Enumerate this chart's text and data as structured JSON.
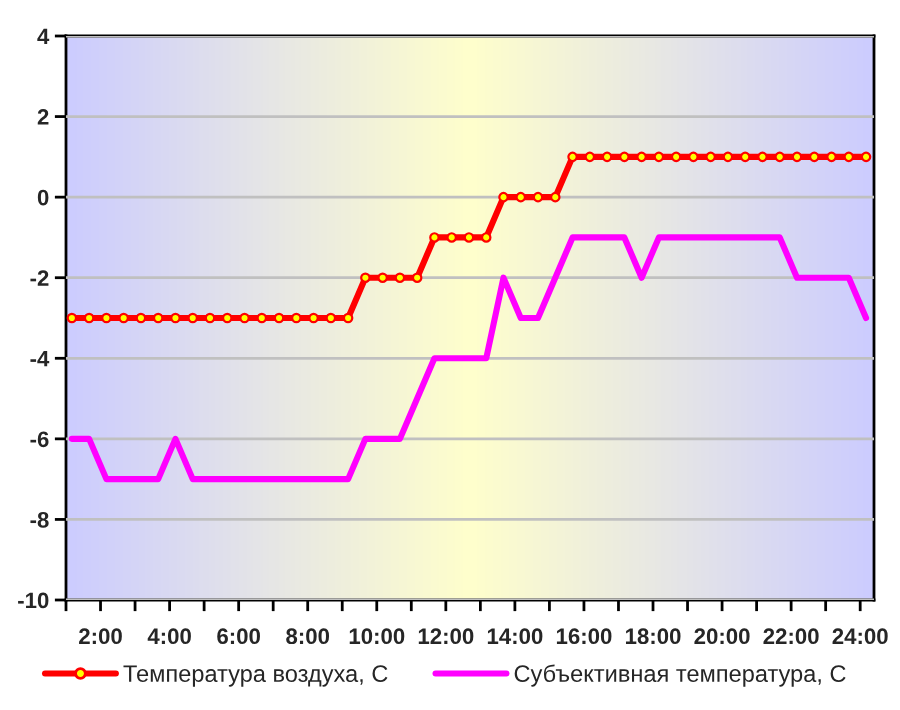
{
  "chart_data": {
    "type": "line",
    "x": [
      1.17,
      1.67,
      2.17,
      2.67,
      3.17,
      3.67,
      4.17,
      4.67,
      5.17,
      5.67,
      6.17,
      6.67,
      7.17,
      7.67,
      8.17,
      8.67,
      9.17,
      9.67,
      10.17,
      10.67,
      11.17,
      11.67,
      12.17,
      12.67,
      13.17,
      13.67,
      14.17,
      14.67,
      15.17,
      15.67,
      16.17,
      16.67,
      17.17,
      17.67,
      18.17,
      18.67,
      19.17,
      19.67,
      20.17,
      20.67,
      21.17,
      21.67,
      22.17,
      22.67,
      23.17,
      23.67,
      24.17
    ],
    "series": [
      {
        "name": "Температура воздуха, С",
        "color": "#ff0000",
        "marker": "circle",
        "values": [
          -3,
          -3,
          -3,
          -3,
          -3,
          -3,
          -3,
          -3,
          -3,
          -3,
          -3,
          -3,
          -3,
          -3,
          -3,
          -3,
          -3,
          -2,
          -2,
          -2,
          -2,
          -1,
          -1,
          -1,
          -1,
          0,
          0,
          0,
          0,
          1,
          1,
          1,
          1,
          1,
          1,
          1,
          1,
          1,
          1,
          1,
          1,
          1,
          1,
          1,
          1,
          1,
          1
        ]
      },
      {
        "name": "Субъективная температура, С",
        "color": "#ff00ff",
        "marker": "none",
        "values": [
          -6,
          -6,
          -7,
          -7,
          -7,
          -7,
          -6,
          -7,
          -7,
          -7,
          -7,
          -7,
          -7,
          -7,
          -7,
          -7,
          -7,
          -6,
          -6,
          -6,
          -5,
          -4,
          -4,
          -4,
          -4,
          -2,
          -3,
          -3,
          -2,
          -1,
          -1,
          -1,
          -1,
          -2,
          -1,
          -1,
          -1,
          -1,
          -1,
          -1,
          -1,
          -1,
          -2,
          -2,
          -2,
          -2,
          -3
        ]
      }
    ],
    "xlim": [
      1,
      24.4
    ],
    "xticks": [
      {
        "value": 1,
        "label": null
      },
      {
        "value": 2,
        "label": "2:00"
      },
      {
        "value": 3,
        "label": null
      },
      {
        "value": 4,
        "label": "4:00"
      },
      {
        "value": 5,
        "label": null
      },
      {
        "value": 6,
        "label": "6:00"
      },
      {
        "value": 7,
        "label": null
      },
      {
        "value": 8,
        "label": "8:00"
      },
      {
        "value": 9,
        "label": null
      },
      {
        "value": 10,
        "label": "10:00"
      },
      {
        "value": 11,
        "label": null
      },
      {
        "value": 12,
        "label": "12:00"
      },
      {
        "value": 13,
        "label": null
      },
      {
        "value": 14,
        "label": "14:00"
      },
      {
        "value": 15,
        "label": null
      },
      {
        "value": 16,
        "label": "16:00"
      },
      {
        "value": 17,
        "label": null
      },
      {
        "value": 18,
        "label": "18:00"
      },
      {
        "value": 19,
        "label": null
      },
      {
        "value": 20,
        "label": "20:00"
      },
      {
        "value": 21,
        "label": null
      },
      {
        "value": 22,
        "label": "22:00"
      },
      {
        "value": 23,
        "label": null
      },
      {
        "value": 24,
        "label": "24:00"
      }
    ],
    "ylim": [
      -10,
      4
    ],
    "yticks": [
      -10,
      -8,
      -6,
      -4,
      -2,
      0,
      2,
      4
    ],
    "grid": "y",
    "legend": "bottom"
  }
}
